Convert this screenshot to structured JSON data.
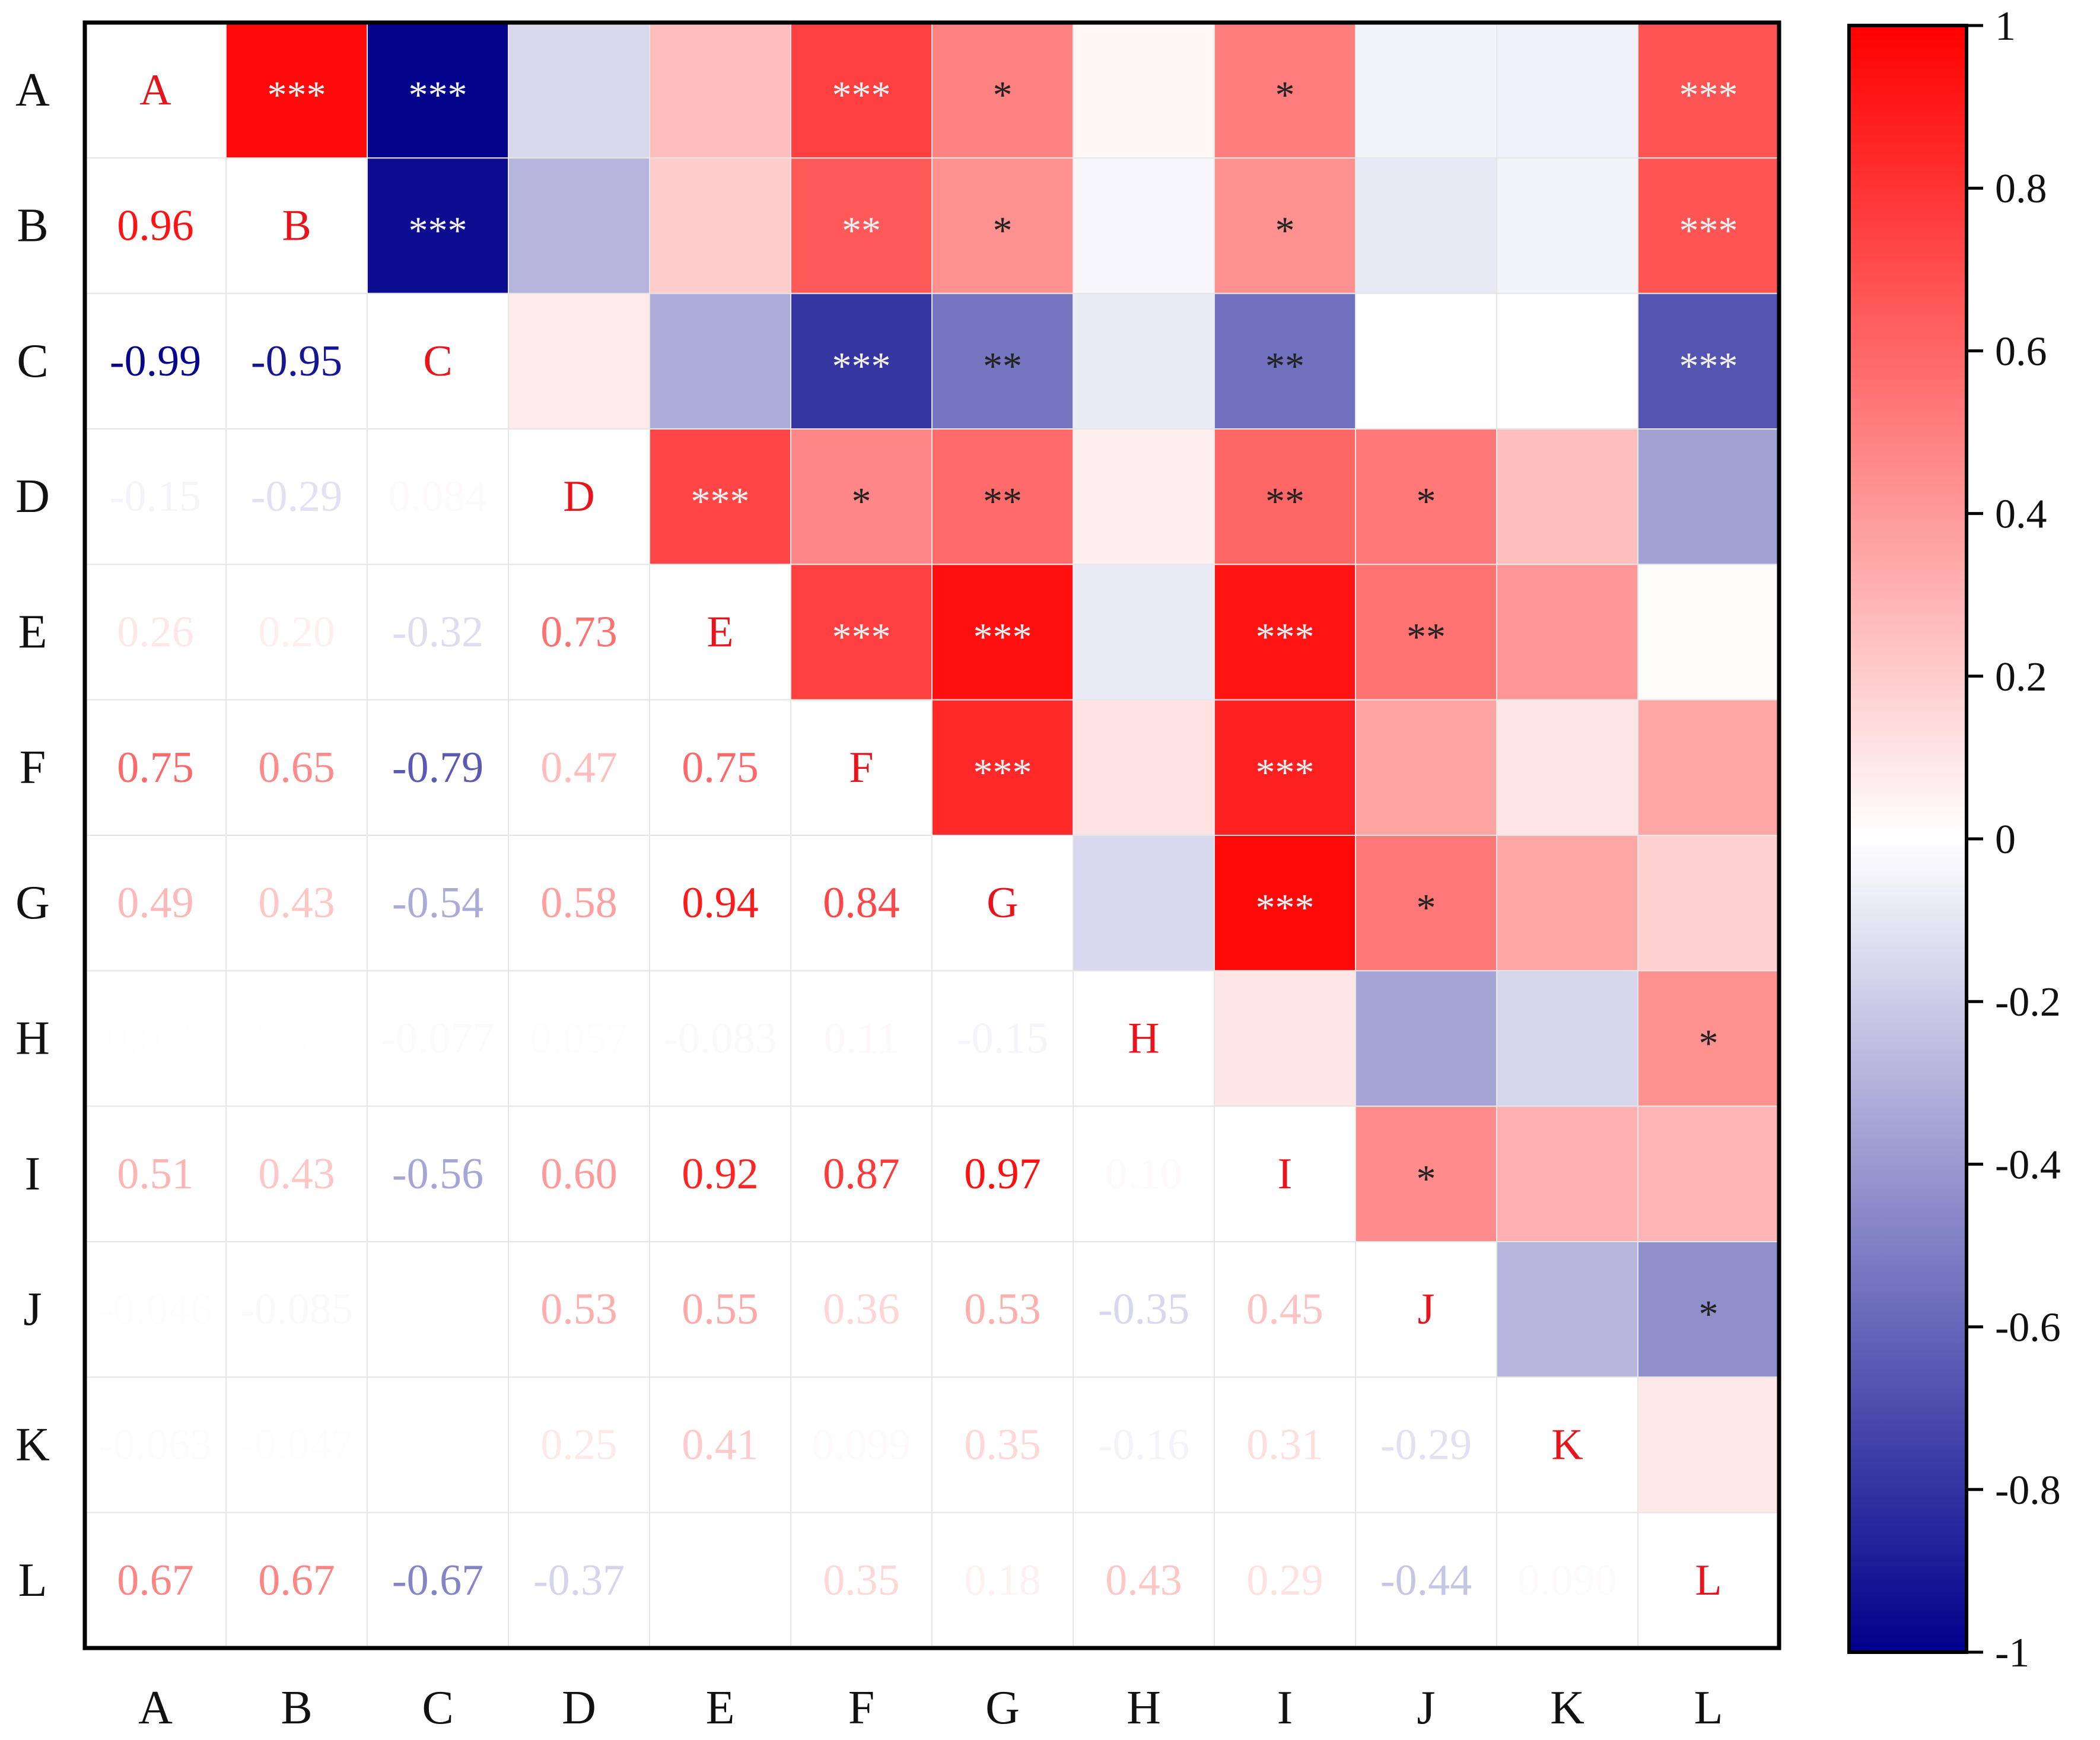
{
  "chart_data": {
    "type": "heatmap",
    "variables": [
      "A",
      "B",
      "C",
      "D",
      "E",
      "F",
      "G",
      "H",
      "I",
      "J",
      "K",
      "L"
    ],
    "row_labels": [
      "A",
      "B",
      "C",
      "D",
      "E",
      "F",
      "G",
      "H",
      "I",
      "J",
      "K",
      "L"
    ],
    "col_labels": [
      "A",
      "B",
      "C",
      "D",
      "E",
      "F",
      "G",
      "H",
      "I",
      "J",
      "K",
      "L"
    ],
    "lower_triangle_display": "correlation coefficient",
    "upper_triangle_display": "colored cell with significance stars",
    "diagonal_display": "variable name",
    "values": [
      [
        1,
        0.96,
        -0.99,
        -0.15,
        0.26,
        0.75,
        0.49,
        0.035,
        0.51,
        -0.046,
        -0.063,
        0.67
      ],
      [
        0.96,
        1,
        -0.95,
        -0.29,
        0.2,
        0.65,
        0.43,
        -0.032,
        0.43,
        -0.085,
        -0.047,
        0.67
      ],
      [
        -0.99,
        -0.95,
        1,
        0.084,
        -0.32,
        -0.79,
        -0.54,
        -0.077,
        -0.56,
        0.005,
        0.002,
        -0.67
      ],
      [
        -0.15,
        -0.29,
        0.084,
        1,
        0.73,
        0.47,
        0.58,
        0.057,
        0.6,
        0.53,
        0.25,
        -0.37
      ],
      [
        0.26,
        0.2,
        -0.32,
        0.73,
        1,
        0.75,
        0.94,
        -0.083,
        0.92,
        0.55,
        0.41,
        0.01
      ],
      [
        0.75,
        0.65,
        -0.79,
        0.47,
        0.75,
        1,
        0.84,
        0.11,
        0.87,
        0.36,
        0.099,
        0.35
      ],
      [
        0.49,
        0.43,
        -0.54,
        0.58,
        0.94,
        0.84,
        1,
        -0.15,
        0.97,
        0.53,
        0.35,
        0.18
      ],
      [
        0.035,
        -0.032,
        -0.077,
        0.057,
        -0.083,
        0.11,
        -0.15,
        1,
        0.1,
        -0.35,
        -0.16,
        0.43
      ],
      [
        0.51,
        0.43,
        -0.56,
        0.6,
        0.92,
        0.87,
        0.97,
        0.1,
        1,
        0.45,
        0.31,
        0.29
      ],
      [
        -0.046,
        -0.085,
        0.005,
        0.53,
        0.55,
        0.36,
        0.53,
        -0.35,
        0.45,
        1,
        -0.29,
        -0.44
      ],
      [
        -0.063,
        -0.047,
        0.002,
        0.25,
        0.41,
        0.099,
        0.35,
        -0.16,
        0.31,
        -0.29,
        1,
        0.09
      ],
      [
        0.67,
        0.67,
        -0.67,
        -0.37,
        0.01,
        0.35,
        0.18,
        0.43,
        0.29,
        -0.44,
        0.09,
        1
      ]
    ],
    "value_labels": [
      [
        null,
        null,
        null,
        null,
        null,
        null,
        null,
        null,
        null,
        null,
        null,
        null
      ],
      [
        "0.96",
        null,
        null,
        null,
        null,
        null,
        null,
        null,
        null,
        null,
        null,
        null
      ],
      [
        "-0.99",
        "-0.95",
        null,
        null,
        null,
        null,
        null,
        null,
        null,
        null,
        null,
        null
      ],
      [
        "-0.15",
        "-0.29",
        "0.084",
        null,
        null,
        null,
        null,
        null,
        null,
        null,
        null,
        null
      ],
      [
        "0.26",
        "0.20",
        "-0.32",
        "0.73",
        null,
        null,
        null,
        null,
        null,
        null,
        null,
        null
      ],
      [
        "0.75",
        "0.65",
        "-0.79",
        "0.47",
        "0.75",
        null,
        null,
        null,
        null,
        null,
        null,
        null
      ],
      [
        "0.49",
        "0.43",
        "-0.54",
        "0.58",
        "0.94",
        "0.84",
        null,
        null,
        null,
        null,
        null,
        null
      ],
      [
        "0.035",
        "-0.032",
        "-0.077",
        "0.057",
        "-0.083",
        "0.11",
        "-0.15",
        null,
        null,
        null,
        null,
        null
      ],
      [
        "0.51",
        "0.43",
        "-0.56",
        "0.60",
        "0.92",
        "0.87",
        "0.97",
        "0.10",
        null,
        null,
        null,
        null
      ],
      [
        "-0.046",
        "-0.085",
        "",
        "0.53",
        "0.55",
        "0.36",
        "0.53",
        "-0.35",
        "0.45",
        null,
        null,
        null
      ],
      [
        "-0.063",
        "-0.047",
        "",
        "0.25",
        "0.41",
        "0.099",
        "0.35",
        "-0.16",
        "0.31",
        "-0.29",
        null,
        null
      ],
      [
        "0.67",
        "0.67",
        "-0.67",
        "-0.37",
        "",
        "0.35",
        "0.18",
        "0.43",
        "0.29",
        "-0.44",
        "0.090",
        null
      ]
    ],
    "significance": [
      [
        "",
        "***",
        "***",
        "",
        "",
        "***",
        "*",
        "",
        "*",
        "",
        "",
        "***"
      ],
      [
        "",
        "",
        "***",
        "",
        "",
        "**",
        "*",
        "",
        "*",
        "",
        "",
        "***"
      ],
      [
        "",
        "",
        "",
        "",
        "",
        "***",
        "**",
        "",
        "**",
        "",
        "",
        "***"
      ],
      [
        "",
        "",
        "",
        "",
        "***",
        "*",
        "**",
        "",
        "**",
        "*",
        "",
        ""
      ],
      [
        "",
        "",
        "",
        "",
        "",
        "***",
        "***",
        "",
        "***",
        "**",
        "",
        ""
      ],
      [
        "",
        "",
        "",
        "",
        "",
        "",
        "***",
        "",
        "***",
        "",
        "",
        ""
      ],
      [
        "",
        "",
        "",
        "",
        "",
        "",
        "",
        "",
        "***",
        "*",
        "",
        ""
      ],
      [
        "",
        "",
        "",
        "",
        "",
        "",
        "",
        "",
        "",
        "",
        "",
        "*"
      ],
      [
        "",
        "",
        "",
        "",
        "",
        "",
        "",
        "",
        "",
        "*",
        "",
        ""
      ],
      [
        "",
        "",
        "",
        "",
        "",
        "",
        "",
        "",
        "",
        "",
        "",
        "*"
      ],
      [
        "",
        "",
        "",
        "",
        "",
        "",
        "",
        "",
        "",
        "",
        "",
        ""
      ],
      [
        "",
        "",
        "",
        "",
        "",
        "",
        "",
        "",
        "",
        "",
        "",
        ""
      ]
    ],
    "colorbar": {
      "min": -1,
      "max": 1,
      "ticks": [
        1,
        0.8,
        0.6,
        0.4,
        0.2,
        0,
        -0.2,
        -0.4,
        -0.6,
        -0.8,
        -1
      ],
      "tick_labels": [
        "1",
        "0.8",
        "0.6",
        "0.4",
        "0.2",
        "0",
        "-0.2",
        "-0.4",
        "-0.6",
        "-0.8",
        "-1"
      ],
      "low_color": "#00008B",
      "mid_color": "#FFFFFF",
      "high_color": "#FF0000",
      "placement": "right"
    },
    "title": "",
    "xlabel": "",
    "ylabel": ""
  },
  "colors": {
    "diagonal_label": "#E8141C",
    "star_light": "#F2F2F2",
    "star_dark": "#222222",
    "grid": "#E6E6E6",
    "axis_text": "#111111"
  }
}
